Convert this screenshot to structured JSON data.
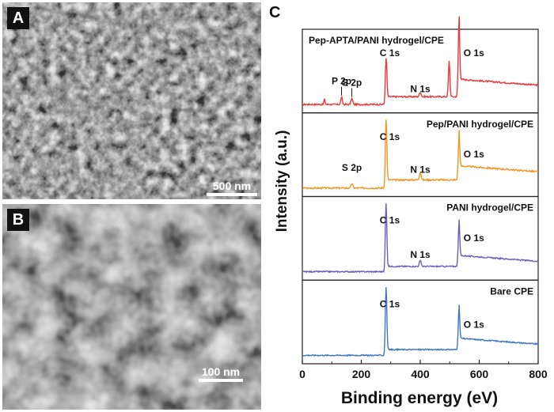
{
  "panels": {
    "a": {
      "letter": "A",
      "scale_label": "500 nm"
    },
    "b": {
      "letter": "B",
      "scale_label": "100 nm"
    },
    "c": {
      "letter": "C"
    }
  },
  "chart_data": {
    "type": "line",
    "xlabel": "Binding energy (eV)",
    "ylabel": "Intensity (a.u.)",
    "xlim": [
      0,
      800
    ],
    "xticks": [
      0,
      200,
      400,
      600,
      800
    ],
    "stacked": true,
    "grid": false,
    "series": [
      {
        "name": "Pep-APTA/PANI hydrogel/CPE",
        "color": "#e8393b",
        "baseline": 0.05,
        "step": 0.19,
        "tail": 0.34,
        "noise": 0.01,
        "peaks": [
          {
            "x": 75,
            "h": 0.07,
            "w": 2
          },
          {
            "x": 133,
            "h": 0.1,
            "w": 2.5
          },
          {
            "x": 168,
            "h": 0.08,
            "w": 3
          },
          {
            "x": 284,
            "h": 0.62,
            "w": 2.5
          },
          {
            "x": 400,
            "h": 0.06,
            "w": 3
          },
          {
            "x": 498,
            "h": 0.48,
            "w": 2.5
          },
          {
            "x": 531,
            "h": 0.92,
            "w": 2.5
          }
        ],
        "annotations": [
          {
            "label": "P 2p",
            "x": 133
          },
          {
            "label": "S 2p",
            "x": 168
          },
          {
            "label": "C 1s",
            "x": 284
          },
          {
            "label": "N 1s",
            "x": 400
          },
          {
            "label": "O 1s",
            "x": 531
          }
        ]
      },
      {
        "name": "Pep/PANI hydrogel/CPE",
        "color": "#f0951f",
        "baseline": 0.05,
        "step": 0.2,
        "tail": 0.3,
        "noise": 0.01,
        "peaks": [
          {
            "x": 168,
            "h": 0.06,
            "w": 3
          },
          {
            "x": 284,
            "h": 0.92,
            "w": 2.5
          },
          {
            "x": 400,
            "h": 0.1,
            "w": 3
          },
          {
            "x": 531,
            "h": 0.52,
            "w": 2.5
          }
        ],
        "annotations": [
          {
            "label": "S 2p",
            "x": 168
          },
          {
            "label": "C 1s",
            "x": 284
          },
          {
            "label": "N 1s",
            "x": 400
          },
          {
            "label": "O 1s",
            "x": 531
          }
        ]
      },
      {
        "name": "PANI hydrogel/CPE",
        "color": "#6b5fb5",
        "baseline": 0.05,
        "step": 0.13,
        "tail": 0.22,
        "noise": 0.008,
        "peaks": [
          {
            "x": 284,
            "h": 0.92,
            "w": 2.5
          },
          {
            "x": 400,
            "h": 0.08,
            "w": 3
          },
          {
            "x": 531,
            "h": 0.52,
            "w": 2.5
          }
        ],
        "annotations": [
          {
            "label": "C 1s",
            "x": 284
          },
          {
            "label": "N 1s",
            "x": 400
          },
          {
            "label": "O 1s",
            "x": 531
          }
        ]
      },
      {
        "name": "Bare CPE",
        "color": "#3f76c4",
        "baseline": 0.05,
        "step": 0.14,
        "tail": 0.23,
        "noise": 0.008,
        "peaks": [
          {
            "x": 284,
            "h": 0.92,
            "w": 2.5
          },
          {
            "x": 531,
            "h": 0.48,
            "w": 2.5
          }
        ],
        "annotations": [
          {
            "label": "C 1s",
            "x": 284
          },
          {
            "label": "O 1s",
            "x": 531
          }
        ]
      }
    ]
  }
}
